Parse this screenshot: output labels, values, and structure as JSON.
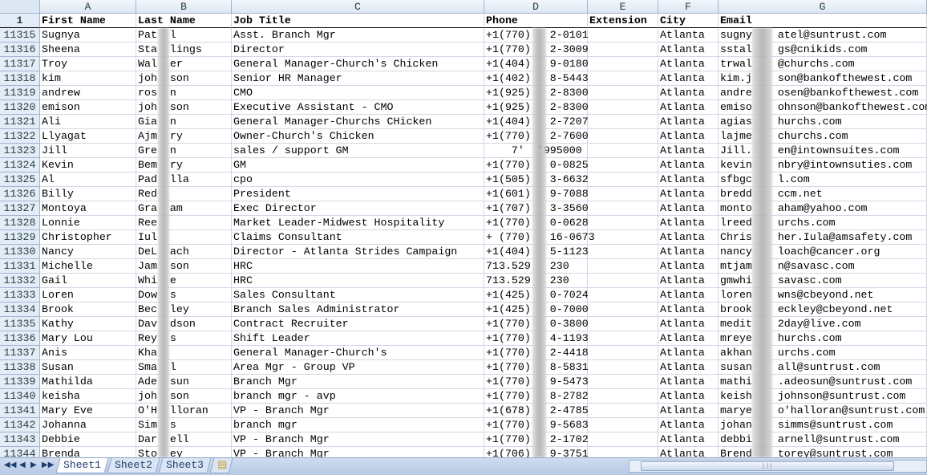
{
  "columns": [
    "A",
    "B",
    "C",
    "D",
    "E",
    "F",
    "G"
  ],
  "header_row_number": "1",
  "headers": [
    "First Name",
    "Last Name",
    "Job Title",
    "Phone",
    "Extension",
    "City",
    "Email"
  ],
  "rows": [
    [
      "11315",
      "Sugnya",
      "Pat  l",
      "Asst. Branch Mgr",
      "+1(770)   2-0101",
      "",
      "Atlanta",
      "sugny    atel@suntrust.com"
    ],
    [
      "11316",
      "Sheena",
      "Sta  lings",
      "Director",
      "+1(770)   2-3009",
      "",
      "Atlanta",
      "sstal    gs@cnikids.com"
    ],
    [
      "11317",
      "Troy",
      "Wal  er",
      "General Manager-Church's Chicken",
      "+1(404)   9-0180",
      "",
      "Atlanta",
      "trwal    @churchs.com"
    ],
    [
      "11318",
      "kim",
      "joh  son",
      "Senior HR Manager",
      "+1(402)   8-5443",
      "",
      "Atlanta",
      "kim.j    son@bankofthewest.com"
    ],
    [
      "11319",
      "andrew",
      "ros  n",
      "CMO",
      "+1(925)   2-8300",
      "",
      "Atlanta",
      "andre    osen@bankofthewest.com"
    ],
    [
      "11320",
      "emison",
      "joh  son",
      "Executive Assistant - CMO",
      "+1(925)   2-8300",
      "",
      "Atlanta",
      "emiso    ohnson@bankofthewest.com"
    ],
    [
      "11321",
      "Ali",
      "Gia  n",
      "General Manager-Churchs CHicken",
      "+1(404)   2-7207",
      "",
      "Atlanta",
      "agias    hurchs.com"
    ],
    [
      "11322",
      "Llyagat",
      "Ajm  ry",
      "Owner-Church's Chicken",
      "+1(770)   2-7600",
      "",
      "Atlanta",
      "lajme    churchs.com"
    ],
    [
      "11323",
      "Jill",
      "Gre  n",
      "sales / support GM",
      "    7'  '995000",
      "",
      "Atlanta",
      "Jill.    en@intownsuites.com"
    ],
    [
      "11324",
      "Kevin",
      "Bem  ry",
      "GM",
      "+1(770)   0-0825",
      "",
      "Atlanta",
      "kevin    nbry@intownsuties.com"
    ],
    [
      "11325",
      "Al",
      "Pad  lla",
      "cpo",
      "+1(505)   3-6632",
      "",
      "Atlanta",
      "sfbgc    l.com"
    ],
    [
      "11326",
      "Billy",
      "Red",
      "President",
      "+1(601)   9-7088",
      "",
      "Atlanta",
      "bredd    ccm.net"
    ],
    [
      "11327",
      "Montoya",
      "Gra  am",
      "Exec Director",
      "+1(707)   3-3560",
      "",
      "Atlanta",
      "monto    aham@yahoo.com"
    ],
    [
      "11328",
      "Lonnie",
      "Ree",
      "Market Leader-Midwest Hospitality",
      "+1(770)   0-0628",
      "",
      "Atlanta",
      "lreed    urchs.com"
    ],
    [
      "11329",
      "Christopher",
      "Iul",
      "Claims Consultant",
      "+ (770)   16-0673",
      "",
      "Atlanta",
      "Chris    her.Iula@amsafety.com"
    ],
    [
      "11330",
      "Nancy",
      "DeL  ach",
      "Director - Atlanta Strides Campaign",
      "+1(404)   5-1123",
      "",
      "Atlanta",
      "nancy    loach@cancer.org"
    ],
    [
      "11331",
      "Michelle",
      "Jam  son",
      "HRC",
      "713.529   230",
      "",
      "Atlanta",
      "mtjam    n@savasc.com"
    ],
    [
      "11332",
      "Gail",
      "Whi  e",
      "HRC",
      "713.529   230",
      "",
      "Atlanta",
      "gmwhi    savasc.com"
    ],
    [
      "11333",
      "Loren",
      "Dow  s",
      "Sales Consultant",
      "+1(425)   0-7024",
      "",
      "Atlanta",
      "loren    wns@cbeyond.net"
    ],
    [
      "11334",
      "Brook",
      "Bec  ley",
      "Branch Sales Administrator",
      "+1(425)   0-7000",
      "",
      "Atlanta",
      "brook    eckley@cbeyond.net"
    ],
    [
      "11335",
      "Kathy",
      "Dav  dson",
      "Contract Recruiter",
      "+1(770)   0-3800",
      "",
      "Atlanta",
      "medit    2day@live.com"
    ],
    [
      "11336",
      "Mary Lou",
      "Rey  s",
      "Shift Leader",
      "+1(770)   4-1193",
      "",
      "Atlanta",
      "mreye    hurchs.com"
    ],
    [
      "11337",
      "Anis",
      "Kha",
      "General Manager-Church's",
      "+1(770)   2-4418",
      "",
      "Atlanta",
      "akhan    urchs.com"
    ],
    [
      "11338",
      "Susan",
      "Sma  l",
      "Area Mgr - Group VP",
      "+1(770)   8-5831",
      "",
      "Atlanta",
      "susan    all@suntrust.com"
    ],
    [
      "11339",
      "Mathilda",
      "Ade  sun",
      "Branch Mgr",
      "+1(770)   9-5473",
      "",
      "Atlanta",
      "mathi    .adeosun@suntrust.com"
    ],
    [
      "11340",
      "keisha",
      "joh  son",
      "branch mgr - avp",
      "+1(770)   8-2782",
      "",
      "Atlanta",
      "keish    johnson@suntrust.com"
    ],
    [
      "11341",
      "Mary Eve",
      "O'H  lloran",
      "VP - Branch Mgr",
      "+1(678)   2-4785",
      "",
      "Atlanta",
      "marye    o'halloran@suntrust.com"
    ],
    [
      "11342",
      "Johanna",
      "Sim  s",
      "branch mgr",
      "+1(770)   9-5683",
      "",
      "Atlanta",
      "johan    simms@suntrust.com"
    ],
    [
      "11343",
      "Debbie",
      "Dar  ell",
      "VP - Branch Mgr",
      "+1(770)   2-1702",
      "",
      "Atlanta",
      "debbi    arnell@suntrust.com"
    ],
    [
      "11344",
      "Brenda",
      "Sto  ey",
      "VP - Branch Mgr",
      "+1(706)   9-3751",
      "",
      "Atlanta",
      "Brend    torey@suntrust.com"
    ]
  ],
  "sheet_tabs": [
    "Sheet1",
    "Sheet2",
    "Sheet3"
  ],
  "active_sheet": "Sheet1",
  "icons": {
    "nav_first": "first-sheet-icon",
    "nav_prev": "prev-sheet-icon",
    "nav_next": "next-sheet-icon",
    "nav_last": "last-sheet-icon",
    "new_sheet": "insert-sheet-icon"
  },
  "colors": {
    "header_bg": "#e4ecf7",
    "gridline": "#d0d7e5",
    "tab_bar": "#c4d4ea"
  }
}
